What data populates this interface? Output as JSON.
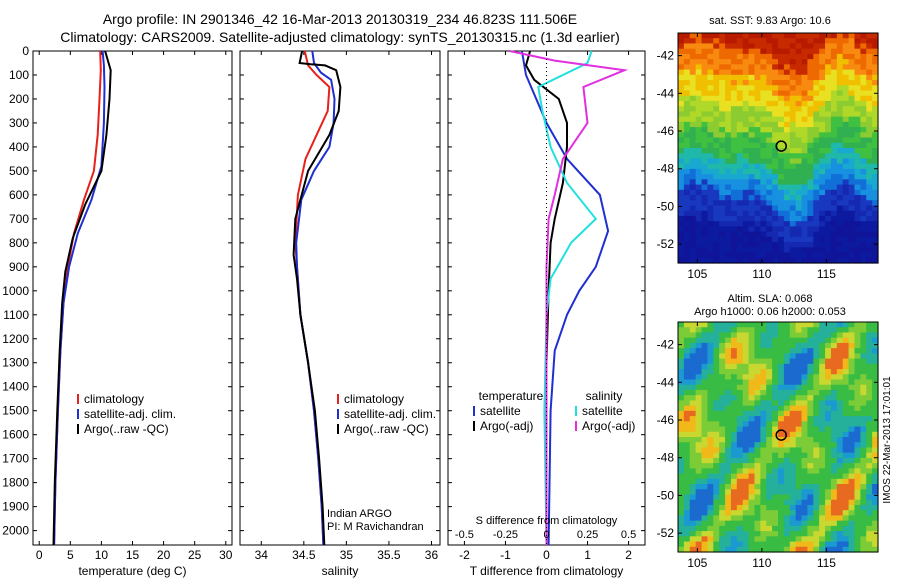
{
  "header": {
    "title_line1": "Argo profile: IN 2901346_42 16-Mar-2013 20130319_234 46.823S 111.506E",
    "title_line2": "Climatology: CARS2009. Satellite-adjusted climatology: synTS_20130315.nc (1.3d earlier)"
  },
  "colors": {
    "climatology": "#e8201c",
    "satellite": "#1f2fd0",
    "argo": "#000000",
    "salinity_sat": "#22e0e0",
    "salinity_argo": "#e030e0"
  },
  "depth_axis": {
    "ticks": [
      0,
      100,
      200,
      300,
      400,
      500,
      600,
      700,
      800,
      900,
      1000,
      1100,
      1200,
      1300,
      1400,
      1500,
      1600,
      1700,
      1800,
      1900,
      2000
    ],
    "range": [
      0,
      2060
    ],
    "reversed": true
  },
  "chart_data": [
    {
      "type": "line",
      "id": "temperature",
      "xlabel": "temperature (deg C)",
      "xlim": [
        -1,
        31
      ],
      "xticks": [
        0,
        5,
        10,
        15,
        20,
        25,
        30
      ],
      "legend": [
        "climatology",
        "satellite-adj. clim.",
        "Argo(..raw -QC)"
      ],
      "series": [
        {
          "name": "climatology",
          "color": "#e8201c",
          "points": [
            [
              9.8,
              0
            ],
            [
              9.9,
              80
            ],
            [
              9.7,
              200
            ],
            [
              9.4,
              350
            ],
            [
              8.8,
              500
            ],
            [
              7.2,
              620
            ],
            [
              5.6,
              760
            ],
            [
              4.6,
              900
            ],
            [
              3.9,
              1050
            ],
            [
              3.4,
              1250
            ],
            [
              3.0,
              1500
            ],
            [
              2.6,
              1800
            ],
            [
              2.4,
              2060
            ]
          ]
        },
        {
          "name": "satellite-adj. clim.",
          "color": "#1f2fd0",
          "points": [
            [
              10.2,
              0
            ],
            [
              10.4,
              60
            ],
            [
              10.5,
              150
            ],
            [
              10.4,
              300
            ],
            [
              10.0,
              480
            ],
            [
              8.4,
              620
            ],
            [
              6.2,
              760
            ],
            [
              4.8,
              900
            ],
            [
              3.9,
              1050
            ],
            [
              3.4,
              1250
            ],
            [
              3.0,
              1500
            ],
            [
              2.6,
              1800
            ],
            [
              2.4,
              2060
            ]
          ]
        },
        {
          "name": "Argo(..raw -QC)",
          "color": "#000000",
          "points": [
            [
              10.6,
              0
            ],
            [
              11.5,
              80
            ],
            [
              11.3,
              200
            ],
            [
              10.8,
              350
            ],
            [
              10.0,
              500
            ],
            [
              7.4,
              640
            ],
            [
              5.4,
              780
            ],
            [
              4.2,
              920
            ],
            [
              3.7,
              1050
            ],
            [
              3.3,
              1250
            ],
            [
              2.9,
              1500
            ],
            [
              2.5,
              1800
            ],
            [
              2.3,
              2060
            ]
          ]
        }
      ]
    },
    {
      "type": "line",
      "id": "salinity",
      "xlabel": "salinity",
      "xlim": [
        33.75,
        36.1
      ],
      "xticks": [
        34,
        34.5,
        35,
        35.5,
        36
      ],
      "xtick_labels": [
        "34",
        "34.5",
        "35",
        "35.5",
        "36"
      ],
      "legend": [
        "climatology",
        "satellite-adj. clim.",
        "Argo(..raw -QC)"
      ],
      "annotation": [
        "Indian ARGO",
        "PI: M Ravichandran"
      ],
      "series": [
        {
          "name": "climatology",
          "color": "#e8201c",
          "points": [
            [
              34.51,
              0
            ],
            [
              34.55,
              60
            ],
            [
              34.65,
              100
            ],
            [
              34.8,
              150
            ],
            [
              34.78,
              250
            ],
            [
              34.65,
              350
            ],
            [
              34.52,
              450
            ],
            [
              34.43,
              600
            ],
            [
              34.4,
              800
            ],
            [
              34.42,
              900
            ],
            [
              34.46,
              1100
            ],
            [
              34.55,
              1300
            ],
            [
              34.62,
              1500
            ],
            [
              34.67,
              1700
            ],
            [
              34.71,
              1900
            ],
            [
              34.73,
              2060
            ]
          ]
        },
        {
          "name": "satellite-adj. clim.",
          "color": "#1f2fd0",
          "points": [
            [
              34.6,
              0
            ],
            [
              34.62,
              50
            ],
            [
              34.7,
              90
            ],
            [
              34.82,
              120
            ],
            [
              34.86,
              200
            ],
            [
              34.85,
              300
            ],
            [
              34.8,
              400
            ],
            [
              34.62,
              500
            ],
            [
              34.47,
              620
            ],
            [
              34.41,
              800
            ],
            [
              34.42,
              900
            ],
            [
              34.46,
              1100
            ],
            [
              34.55,
              1300
            ],
            [
              34.62,
              1500
            ],
            [
              34.67,
              1700
            ],
            [
              34.71,
              1900
            ],
            [
              34.73,
              2060
            ]
          ]
        },
        {
          "name": "Argo(..raw -QC)",
          "color": "#000000",
          "points": [
            [
              34.48,
              0
            ],
            [
              34.45,
              50
            ],
            [
              34.58,
              55
            ],
            [
              34.75,
              60
            ],
            [
              34.88,
              80
            ],
            [
              34.93,
              150
            ],
            [
              34.91,
              250
            ],
            [
              34.8,
              350
            ],
            [
              34.55,
              500
            ],
            [
              34.4,
              700
            ],
            [
              34.38,
              850
            ],
            [
              34.42,
              950
            ],
            [
              34.46,
              1100
            ],
            [
              34.55,
              1300
            ],
            [
              34.63,
              1500
            ],
            [
              34.68,
              1700
            ],
            [
              34.72,
              1900
            ],
            [
              34.74,
              2060
            ]
          ]
        }
      ]
    },
    {
      "type": "line",
      "id": "differences",
      "xlabel": "T difference from climatology",
      "xlabel_top": "S difference from climatology",
      "xlim": [
        -2.4,
        2.4
      ],
      "xticks": [
        -2,
        -1,
        0,
        1,
        2
      ],
      "sticks": [
        -0.5,
        -0.25,
        0,
        0.25,
        0.5
      ],
      "stick_labels": [
        "-0.5",
        "-0.25",
        "0",
        "0.25",
        "0.5"
      ],
      "legend_left_title": "temperature",
      "legend_right_title": "salinity",
      "legend": [
        "satellite",
        "Argo(-adj)",
        "satellite",
        "Argo(-adj)"
      ],
      "series": [
        {
          "name": "satellite",
          "quantity": "temperature",
          "color": "#1f2fd0",
          "points": [
            [
              -0.6,
              0
            ],
            [
              -0.5,
              100
            ],
            [
              0.0,
              300
            ],
            [
              0.5,
              450
            ],
            [
              1.3,
              600
            ],
            [
              1.5,
              750
            ],
            [
              1.2,
              900
            ],
            [
              0.8,
              1000
            ],
            [
              0.5,
              1100
            ],
            [
              0.2,
              1250
            ],
            [
              0.1,
              1500
            ],
            [
              0.05,
              2060
            ]
          ]
        },
        {
          "name": "Argo(-adj)",
          "quantity": "temperature",
          "color": "#000000",
          "points": [
            [
              -0.4,
              0
            ],
            [
              -0.5,
              60
            ],
            [
              -0.3,
              120
            ],
            [
              0.3,
              200
            ],
            [
              0.5,
              300
            ],
            [
              0.5,
              400
            ],
            [
              0.4,
              550
            ],
            [
              0.2,
              700
            ],
            [
              0.1,
              800
            ],
            [
              0.05,
              1000
            ],
            [
              0.0,
              1300
            ],
            [
              0.0,
              2060
            ]
          ]
        },
        {
          "name": "satellite",
          "quantity": "salinity",
          "color": "#22e0e0",
          "points": [
            [
              1.1,
              0
            ],
            [
              1.0,
              50
            ],
            [
              -0.2,
              150
            ],
            [
              -0.1,
              250
            ],
            [
              0.1,
              400
            ],
            [
              0.5,
              550
            ],
            [
              1.2,
              700
            ],
            [
              0.6,
              800
            ],
            [
              0.1,
              950
            ],
            [
              0.0,
              1100
            ],
            [
              -0.05,
              1500
            ],
            [
              0.0,
              2060
            ]
          ]
        },
        {
          "name": "Argo(-adj)",
          "quantity": "salinity",
          "color": "#e030e0",
          "points": [
            [
              -0.9,
              0
            ],
            [
              0.2,
              40
            ],
            [
              1.9,
              80
            ],
            [
              0.9,
              150
            ],
            [
              1.0,
              300
            ],
            [
              0.4,
              450
            ],
            [
              0.2,
              600
            ],
            [
              0.05,
              700
            ],
            [
              0.0,
              900
            ],
            [
              0.0,
              2060
            ]
          ]
        }
      ]
    },
    {
      "type": "heatmap",
      "id": "sst_map",
      "title": "sat. SST: 9.83  Argo: 10.6",
      "xticks": [
        105,
        110,
        115
      ],
      "yticks": [
        -42,
        -44,
        -46,
        -48,
        -50,
        -52
      ],
      "xlim": [
        103.5,
        119
      ],
      "ylim": [
        -53,
        -40.8
      ],
      "marker": {
        "lon": 111.5,
        "lat": -46.8
      }
    },
    {
      "type": "heatmap",
      "id": "sla_map",
      "title": "Altim. SLA: 0.068",
      "subtitle": "Argo h1000: 0.06 h2000: 0.053",
      "xticks": [
        105,
        110,
        115
      ],
      "yticks": [
        -42,
        -44,
        -46,
        -48,
        -50,
        -52
      ],
      "xlim": [
        103.5,
        119
      ],
      "ylim": [
        -53,
        -40.8
      ],
      "marker": {
        "lon": 111.5,
        "lat": -46.8
      }
    }
  ],
  "footer": {
    "stamp": "IMOS 22-Mar-2013 17:01:01"
  }
}
